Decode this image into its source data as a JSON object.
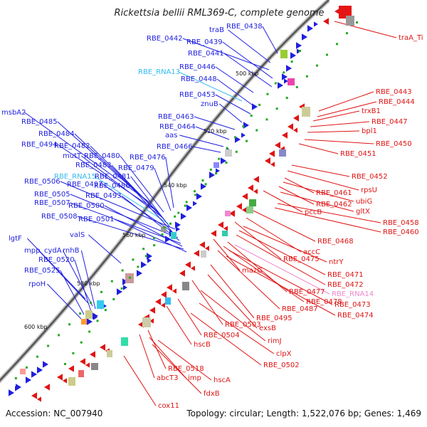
{
  "title": "Rickettsia bellii RML369-C, complete genome",
  "footer": {
    "accession": "Accession: NC_007940",
    "topology": "Topology: circular; Length: 1,522,076 bp; Genes: 1,469"
  },
  "colors": {
    "forward_gene": "#1f1fe0",
    "reverse_gene": "#e01414",
    "rna": "#33bbee",
    "rna_reverse": "#ee88cc",
    "backbone": "#999999",
    "tick": "#22aa22"
  },
  "kbp_ticks": [
    "500 kbp",
    "520 kbp",
    "540 kbp",
    "560 kbp",
    "580 kbp",
    "600 kbp"
  ],
  "left_labels": [
    {
      "text": "RBE_0438",
      "kind": "forward"
    },
    {
      "text": "traB",
      "kind": "forward"
    },
    {
      "text": "RBE_0442",
      "kind": "forward"
    },
    {
      "text": "RBE_0439",
      "kind": "forward"
    },
    {
      "text": "RBE_0441",
      "kind": "forward"
    },
    {
      "text": "RBE_RNA13",
      "kind": "rna"
    },
    {
      "text": "RBE_0446",
      "kind": "forward"
    },
    {
      "text": "RBE_0448",
      "kind": "forward"
    },
    {
      "text": "RBE_0453",
      "kind": "forward"
    },
    {
      "text": "znuB",
      "kind": "forward"
    },
    {
      "text": "RBE_0463",
      "kind": "forward"
    },
    {
      "text": "RBE_0464",
      "kind": "forward"
    },
    {
      "text": "aas",
      "kind": "forward"
    },
    {
      "text": "RBE_0466",
      "kind": "forward"
    },
    {
      "text": "msbA2",
      "kind": "forward"
    },
    {
      "text": "RBE_0485",
      "kind": "forward"
    },
    {
      "text": "RBE_0484",
      "kind": "forward"
    },
    {
      "text": "RBE_0494",
      "kind": "forward"
    },
    {
      "text": "RBE_0482",
      "kind": "forward"
    },
    {
      "text": "mutT",
      "kind": "forward"
    },
    {
      "text": "RBE_0480",
      "kind": "forward"
    },
    {
      "text": "RBE_0476",
      "kind": "forward"
    },
    {
      "text": "RBE_0483",
      "kind": "forward"
    },
    {
      "text": "RBE_0479",
      "kind": "forward"
    },
    {
      "text": "RBE_RNA15",
      "kind": "rna"
    },
    {
      "text": "RBE_0481",
      "kind": "forward"
    },
    {
      "text": "RBE_0506",
      "kind": "forward"
    },
    {
      "text": "RBE_0497",
      "kind": "forward"
    },
    {
      "text": "RBE_0486",
      "kind": "forward"
    },
    {
      "text": "RBE_0505",
      "kind": "forward"
    },
    {
      "text": "RBE_0493",
      "kind": "forward"
    },
    {
      "text": "RBE_0507",
      "kind": "forward"
    },
    {
      "text": "RBE_0500",
      "kind": "forward"
    },
    {
      "text": "RBE_0508",
      "kind": "forward"
    },
    {
      "text": "RBE_0501",
      "kind": "forward"
    },
    {
      "text": "valS",
      "kind": "forward"
    },
    {
      "text": "lgtF",
      "kind": "forward"
    },
    {
      "text": "mpp",
      "kind": "forward"
    },
    {
      "text": "cydA",
      "kind": "forward"
    },
    {
      "text": "rnhB",
      "kind": "forward"
    },
    {
      "text": "RBE_0520",
      "kind": "forward"
    },
    {
      "text": "RBE_0525",
      "kind": "forward"
    },
    {
      "text": "rpoH",
      "kind": "forward"
    }
  ],
  "right_labels": [
    {
      "text": "traA_Ti",
      "kind": "reverse"
    },
    {
      "text": "RBE_0443",
      "kind": "reverse"
    },
    {
      "text": "RBE_0444",
      "kind": "reverse"
    },
    {
      "text": "trxB1",
      "kind": "reverse"
    },
    {
      "text": "RBE_0447",
      "kind": "reverse"
    },
    {
      "text": "bpl1",
      "kind": "reverse"
    },
    {
      "text": "RBE_0450",
      "kind": "reverse"
    },
    {
      "text": "RBE_0451",
      "kind": "reverse"
    },
    {
      "text": "RBE_0452",
      "kind": "reverse"
    },
    {
      "text": "rpsU",
      "kind": "reverse"
    },
    {
      "text": "RBE_0461",
      "kind": "reverse"
    },
    {
      "text": "ubiG",
      "kind": "reverse"
    },
    {
      "text": "RBE_0462",
      "kind": "reverse"
    },
    {
      "text": "gltX",
      "kind": "reverse"
    },
    {
      "text": "pccB",
      "kind": "reverse"
    },
    {
      "text": "RBE_0458",
      "kind": "reverse"
    },
    {
      "text": "RBE_0460",
      "kind": "reverse"
    },
    {
      "text": "RBE_0468",
      "kind": "reverse"
    },
    {
      "text": "accC",
      "kind": "reverse"
    },
    {
      "text": "ntrY",
      "kind": "reverse"
    },
    {
      "text": "RBE_0475",
      "kind": "reverse"
    },
    {
      "text": "RBE_0471",
      "kind": "reverse"
    },
    {
      "text": "RBE_0472",
      "kind": "reverse"
    },
    {
      "text": "mazG",
      "kind": "reverse"
    },
    {
      "text": "RBE_0477",
      "kind": "reverse"
    },
    {
      "text": "RBE_RNA14",
      "kind": "rna_reverse"
    },
    {
      "text": "RBE_0478",
      "kind": "reverse"
    },
    {
      "text": "RBE_0473",
      "kind": "reverse"
    },
    {
      "text": "RBE_0487",
      "kind": "reverse"
    },
    {
      "text": "RBE_0474",
      "kind": "reverse"
    },
    {
      "text": "RBE_0495",
      "kind": "reverse"
    },
    {
      "text": "RBE_0503",
      "kind": "reverse"
    },
    {
      "text": "exsB",
      "kind": "reverse"
    },
    {
      "text": "RBE_0504",
      "kind": "reverse"
    },
    {
      "text": "rimJ",
      "kind": "reverse"
    },
    {
      "text": "hscB",
      "kind": "reverse"
    },
    {
      "text": "clpX",
      "kind": "reverse"
    },
    {
      "text": "RBE_0502",
      "kind": "reverse"
    },
    {
      "text": "RBE_0518",
      "kind": "reverse"
    },
    {
      "text": "abcT3",
      "kind": "reverse"
    },
    {
      "text": "imp",
      "kind": "reverse"
    },
    {
      "text": "hscA",
      "kind": "reverse"
    },
    {
      "text": "fdxB",
      "kind": "reverse"
    },
    {
      "text": "cox11",
      "kind": "reverse"
    }
  ]
}
